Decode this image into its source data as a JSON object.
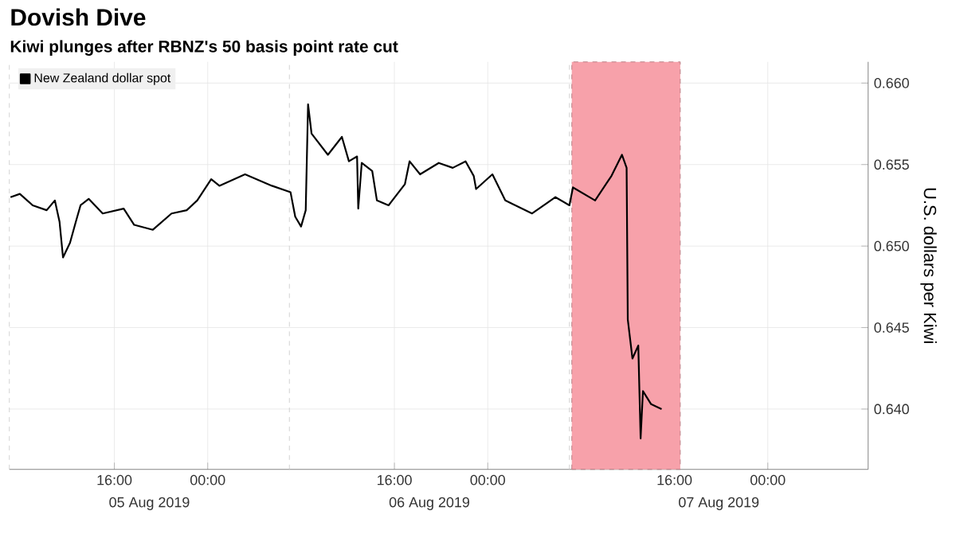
{
  "chart_data": {
    "type": "line",
    "title": "Dovish Dive",
    "subtitle": "Kiwi plunges after RBNZ's 50 basis point rate cut",
    "ylabel": "U.S. dollars per Kiwi",
    "series": [
      {
        "name": "New Zealand dollar spot",
        "color": "#000000",
        "x": [
          "2019-08-05T07:06",
          "2019-08-05T07:54",
          "2019-08-05T09:00",
          "2019-08-05T10:12",
          "2019-08-05T10:54",
          "2019-08-05T11:18",
          "2019-08-05T11:36",
          "2019-08-05T12:12",
          "2019-08-05T12:42",
          "2019-08-05T13:06",
          "2019-08-05T13:48",
          "2019-08-05T15:00",
          "2019-08-05T16:48",
          "2019-08-05T17:42",
          "2019-08-05T19:18",
          "2019-08-05T20:54",
          "2019-08-05T22:12",
          "2019-08-05T23:06",
          "2019-08-06T00:18",
          "2019-08-06T01:00",
          "2019-08-06T03:12",
          "2019-08-06T05:30",
          "2019-08-06T07:06",
          "2019-08-06T07:30",
          "2019-08-06T08:00",
          "2019-08-06T08:24",
          "2019-08-06T08:36",
          "2019-08-06T08:54",
          "2019-08-06T10:18",
          "2019-08-06T11:30",
          "2019-08-06T12:06",
          "2019-08-06T12:48",
          "2019-08-06T12:54",
          "2019-08-06T13:12",
          "2019-08-06T14:06",
          "2019-08-06T14:30",
          "2019-08-06T15:30",
          "2019-08-06T16:54",
          "2019-08-06T17:18",
          "2019-08-06T18:12",
          "2019-08-06T19:48",
          "2019-08-06T21:00",
          "2019-08-06T22:06",
          "2019-08-06T22:48",
          "2019-08-06T23:00",
          "2019-08-07T00:24",
          "2019-08-07T01:30",
          "2019-08-07T03:48",
          "2019-08-07T05:48",
          "2019-08-07T07:00",
          "2019-08-07T07:18",
          "2019-08-07T09:12",
          "2019-08-07T10:36",
          "2019-08-07T11:30",
          "2019-08-07T11:54",
          "2019-08-07T12:00",
          "2019-08-07T12:24",
          "2019-08-07T12:54",
          "2019-08-07T13:06",
          "2019-08-07T13:18",
          "2019-08-07T14:00",
          "2019-08-07T14:54"
        ],
        "values": [
          0.653,
          0.6532,
          0.6525,
          0.6522,
          0.6528,
          0.6515,
          0.6493,
          0.6502,
          0.6515,
          0.6525,
          0.6529,
          0.652,
          0.6523,
          0.6513,
          0.651,
          0.652,
          0.6522,
          0.6528,
          0.6541,
          0.6537,
          0.6544,
          0.6537,
          0.6533,
          0.6518,
          0.6512,
          0.6522,
          0.6587,
          0.6569,
          0.6556,
          0.6567,
          0.6552,
          0.6555,
          0.6523,
          0.6551,
          0.6546,
          0.6528,
          0.6525,
          0.6538,
          0.6552,
          0.6544,
          0.6551,
          0.6548,
          0.6552,
          0.6543,
          0.6535,
          0.6544,
          0.6528,
          0.652,
          0.653,
          0.6525,
          0.6536,
          0.6528,
          0.6543,
          0.6556,
          0.6548,
          0.6455,
          0.6431,
          0.6439,
          0.6382,
          0.6411,
          0.6403,
          0.64
        ]
      }
    ],
    "xlim": [
      "2019-08-05T07:00",
      "2019-08-08T08:36"
    ],
    "ylim": [
      0.6363,
      0.6613
    ],
    "xticks": [
      {
        "value": "2019-08-05T16:00",
        "label": "16:00"
      },
      {
        "value": "2019-08-06T00:00",
        "label": "00:00"
      },
      {
        "value": "2019-08-06T16:00",
        "label": "16:00"
      },
      {
        "value": "2019-08-07T00:00",
        "label": "00:00"
      },
      {
        "value": "2019-08-07T16:00",
        "label": "16:00"
      },
      {
        "value": "2019-08-08T00:00",
        "label": "00:00"
      }
    ],
    "yticks": [
      {
        "value": 0.64,
        "label": "0.640"
      },
      {
        "value": 0.645,
        "label": "0.645"
      },
      {
        "value": 0.65,
        "label": "0.650"
      },
      {
        "value": 0.655,
        "label": "0.655"
      },
      {
        "value": 0.66,
        "label": "0.660"
      }
    ],
    "annotations": [
      "05 Aug 2019",
      "06 Aug 2019",
      "07 Aug 2019"
    ],
    "ref_lines": [
      {
        "axis": "x",
        "value": "2019-08-05T07:00",
        "color": "#c8c8c8",
        "line_style": "dashed"
      },
      {
        "axis": "x",
        "value": "2019-08-06T07:00",
        "color": "#c8c8c8",
        "line_style": "dashed"
      },
      {
        "axis": "x",
        "value": "2019-08-07T07:00",
        "color": "#c8c8c8",
        "line_style": "dashed"
      }
    ],
    "bands": [
      {
        "axis": "x",
        "from": "2019-08-07T07:12",
        "to": "2019-08-07T16:30",
        "color": "#f7a1aa"
      }
    ],
    "grid": true,
    "legend": "top left",
    "line_style": "solid",
    "marker": "none"
  }
}
